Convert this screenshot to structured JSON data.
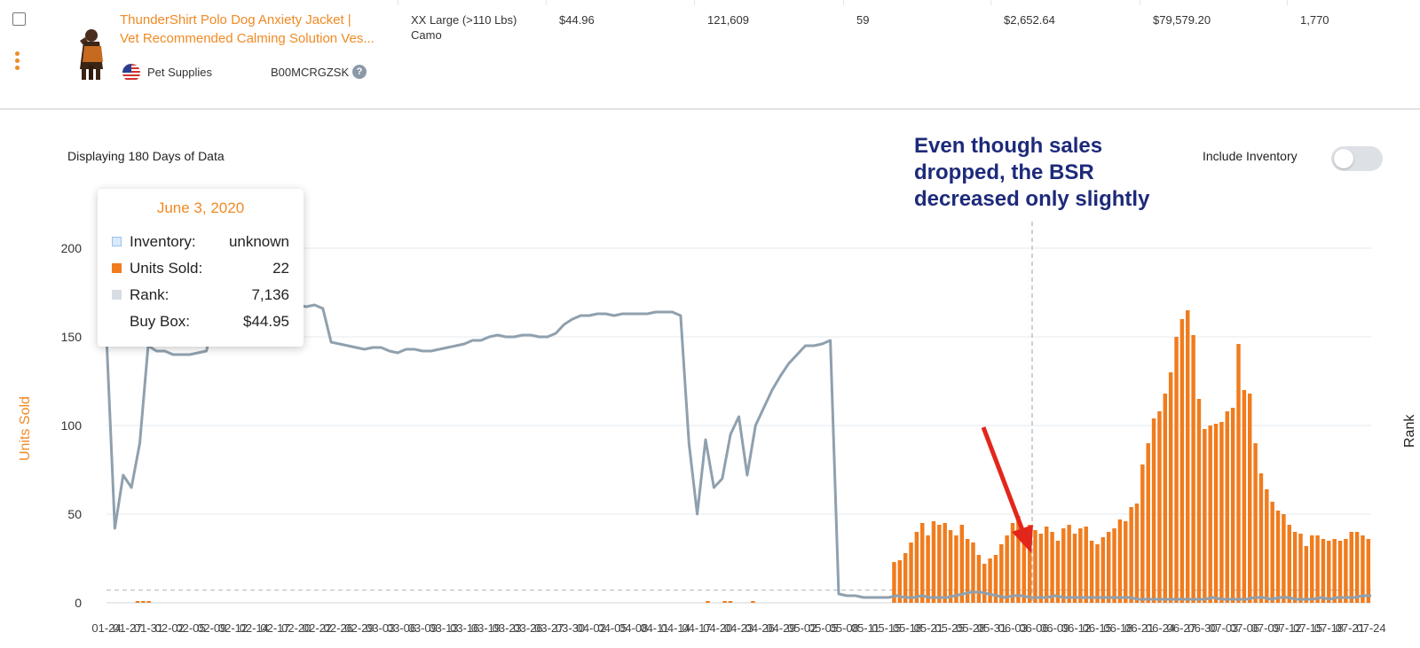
{
  "product": {
    "title_line1": "ThunderShirt Polo Dog Anxiety Jacket |",
    "title_line2": "Vet Recommended Calming Solution Ves...",
    "category": "Pet Supplies",
    "asin": "B00MCRGZSK",
    "help_glyph": "?",
    "variant_line1": "XX Large (>110 Lbs)",
    "variant_line2": "Camo",
    "price": "$44.96",
    "value_2": "121,609",
    "value_3": "59",
    "revenue_1": "$2,652.64",
    "revenue_2": "$79,579.20",
    "value_4": "1,770",
    "flag_icon": "us-flag-icon",
    "thumbnail_icon": "dog-vest-thumbnail"
  },
  "chart_header": {
    "display_label": "Displaying 180 Days of Data",
    "include_inventory_label": "Include Inventory",
    "include_inventory_on": false
  },
  "annotation": {
    "line1": "Even though sales",
    "line2": "dropped, the BSR",
    "line3": "decreased only slightly",
    "color": "#1d2a7a",
    "arrow_color": "#e3261c"
  },
  "tooltip": {
    "date": "June 3, 2020",
    "inventory_label": "Inventory:",
    "inventory_value": "unknown",
    "units_label": "Units Sold:",
    "units_value": "22",
    "rank_label": "Rank:",
    "rank_value": "7,136",
    "buybox_label": "Buy Box:",
    "buybox_value": "$44.95"
  },
  "colors": {
    "accent": "#f08a24",
    "units_bar": "#f07c1e",
    "rank_line": "#8fa0ae",
    "inventory_swatch": "#9cc3f0",
    "rank_swatch": "#d7dde2"
  },
  "chart_data": {
    "type": "bar",
    "ylabel": "Units Sold",
    "y2label": "Rank",
    "ylim": [
      0,
      220
    ],
    "yticks": [
      0,
      50,
      100,
      150,
      200
    ],
    "grid": true,
    "days": 180,
    "x_tick_labels": [
      "01-24",
      "01-27",
      "01-31",
      "02-02",
      "02-05",
      "02-09",
      "02-12",
      "02-14",
      "02-17",
      "02-20",
      "02-22",
      "02-26",
      "02-29",
      "03-03",
      "03-06",
      "03-09",
      "03-13",
      "03-16",
      "03-19",
      "03-23",
      "03-26",
      "03-27",
      "03-30",
      "04-02",
      "04-05",
      "04-08",
      "04-11",
      "04-14",
      "04-17",
      "04-20",
      "04-23",
      "04-26",
      "04-29",
      "05-02",
      "05-05",
      "05-08",
      "05-11",
      "05-15",
      "05-18",
      "05-21",
      "05-25",
      "05-28",
      "05-31",
      "06-03",
      "06-06",
      "06-09",
      "06-12",
      "06-15",
      "06-18",
      "06-21",
      "06-24",
      "06-27",
      "06-30",
      "07-03",
      "07-06",
      "07-09",
      "07-12",
      "07-15",
      "07-18",
      "07-21",
      "07-24"
    ],
    "series": [
      {
        "name": "Units Sold",
        "type": "bar",
        "values": [
          0,
          0,
          0,
          0,
          0,
          1,
          1,
          1,
          0,
          0,
          0,
          0,
          0,
          0,
          0,
          0,
          0,
          0,
          0,
          0,
          0,
          0,
          0,
          0,
          0,
          0,
          0,
          0,
          0,
          0,
          0,
          0,
          0,
          0,
          0,
          0,
          0,
          0,
          0,
          0,
          0,
          0,
          0,
          0,
          0,
          0,
          0,
          0,
          0,
          0,
          0,
          0,
          0,
          0,
          0,
          0,
          0,
          0,
          0,
          0,
          0,
          0,
          0,
          0,
          0,
          0,
          0,
          0,
          0,
          0,
          0,
          0,
          0,
          0,
          0,
          0,
          0,
          0,
          0,
          0,
          0,
          0,
          0,
          0,
          0,
          0,
          0,
          0,
          0,
          0,
          0,
          0,
          0,
          0,
          0,
          0,
          0,
          0,
          0,
          0,
          0,
          0,
          0,
          0,
          0,
          0,
          1,
          0,
          0,
          1,
          1,
          0,
          0,
          0,
          1,
          0,
          0,
          0,
          0,
          0,
          0,
          0,
          0,
          0,
          0,
          0,
          0,
          0,
          0,
          0,
          0,
          0,
          0,
          0,
          0,
          0,
          0,
          0,
          0,
          23,
          24,
          28,
          34,
          40,
          45,
          38,
          46,
          44,
          45,
          41,
          38,
          44,
          36,
          34,
          27,
          22,
          25,
          27,
          33,
          38,
          45,
          49,
          41,
          44,
          41,
          39,
          43,
          40,
          35,
          42,
          44,
          39,
          42,
          43,
          35,
          33,
          37,
          40,
          42,
          47,
          46,
          54,
          56,
          78,
          90,
          104,
          108,
          118,
          130,
          150,
          160,
          165,
          151,
          115,
          98,
          100,
          101,
          102,
          108,
          110,
          146,
          120,
          118,
          90,
          73,
          64,
          57,
          52,
          50,
          44,
          40,
          39,
          32,
          38,
          38,
          36,
          35,
          36,
          35,
          36,
          40,
          40,
          38,
          36
        ]
      },
      {
        "name": "Rank",
        "type": "line",
        "values": [
          150,
          42,
          72,
          65,
          90,
          145,
          142,
          142,
          140,
          140,
          140,
          141,
          142,
          160,
          161,
          163,
          165,
          166,
          166,
          167,
          167,
          168,
          167,
          168,
          167,
          168,
          166,
          147,
          146,
          145,
          144,
          143,
          144,
          144,
          142,
          141,
          143,
          143,
          142,
          142,
          143,
          144,
          145,
          146,
          148,
          148,
          150,
          151,
          150,
          150,
          151,
          151,
          150,
          150,
          152,
          157,
          160,
          162,
          162,
          163,
          163,
          162,
          163,
          163,
          163,
          163,
          164,
          164,
          164,
          162,
          90,
          50,
          92,
          65,
          70,
          95,
          105,
          72,
          100,
          110,
          120,
          128,
          135,
          140,
          145,
          145,
          146,
          148,
          5,
          4,
          4,
          3,
          3,
          3,
          3,
          4,
          3,
          3,
          4,
          3,
          3,
          3,
          4,
          5,
          6,
          6,
          5,
          4,
          3,
          4,
          4,
          3,
          3,
          3,
          4,
          3,
          3,
          3,
          3,
          3,
          3,
          3,
          3,
          3,
          2,
          2,
          2,
          2,
          2,
          2,
          2,
          2,
          2,
          3,
          2,
          2,
          2,
          2,
          3,
          3,
          2,
          3,
          3,
          2,
          2,
          2,
          3,
          2,
          3,
          3,
          3,
          4,
          4
        ]
      }
    ],
    "buybox_reference": 7.136
  }
}
